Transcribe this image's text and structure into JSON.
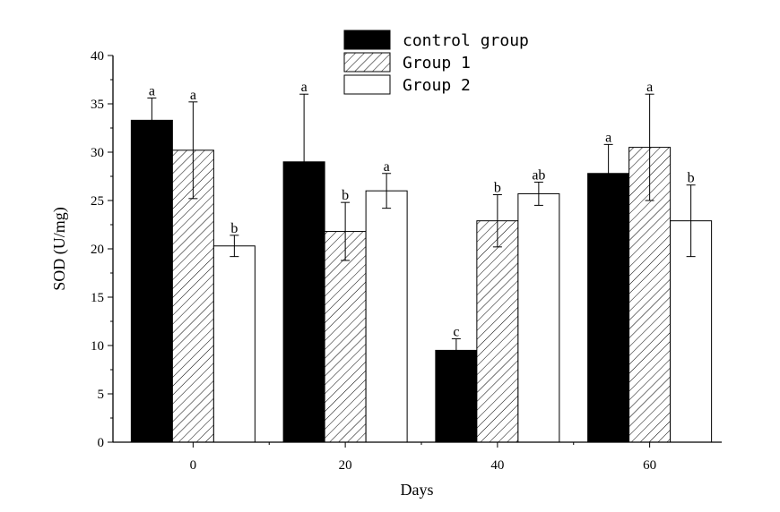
{
  "chart_data": {
    "type": "bar",
    "xlabel": "Days",
    "ylabel": "SOD (U/mg)",
    "ylim": [
      0,
      40
    ],
    "yticks": [
      0,
      5,
      10,
      15,
      20,
      25,
      30,
      35,
      40
    ],
    "categories": [
      "0",
      "20",
      "40",
      "60"
    ],
    "legend_position": "top-center",
    "grid": false,
    "series": [
      {
        "name": "control group",
        "fill": "solid",
        "color": "#000000",
        "values": [
          33.3,
          29.0,
          9.5,
          27.8
        ],
        "errors": [
          2.3,
          7.0,
          1.2,
          3.0
        ],
        "significance": [
          "a",
          "a",
          "c",
          "a"
        ]
      },
      {
        "name": "Group 1",
        "fill": "hatched",
        "color": "#000000",
        "values": [
          30.2,
          21.8,
          22.9,
          30.5
        ],
        "errors": [
          5.0,
          3.0,
          2.7,
          5.5
        ],
        "significance": [
          "a",
          "b",
          "b",
          "a"
        ]
      },
      {
        "name": "Group 2",
        "fill": "empty",
        "color": "#ffffff",
        "values": [
          20.3,
          26.0,
          25.7,
          22.9
        ],
        "errors": [
          1.1,
          1.8,
          1.2,
          3.7
        ],
        "significance": [
          "b",
          "a",
          "ab",
          "b"
        ]
      }
    ]
  }
}
